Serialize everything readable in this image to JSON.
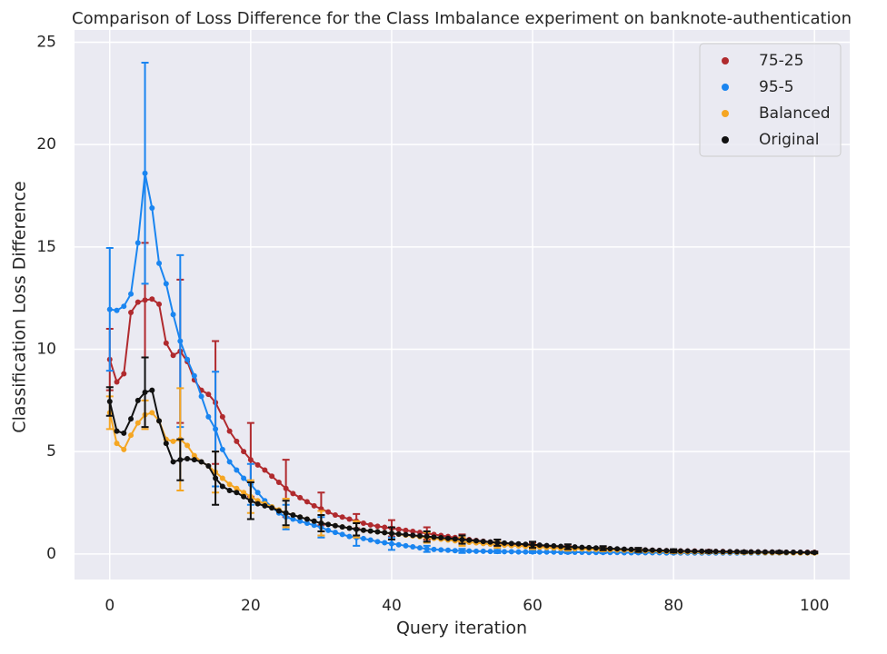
{
  "chart_data": {
    "type": "line",
    "title": "Comparison of Loss Difference for the Class Imbalance experiment on banknote-authentication",
    "xlabel": "Query iteration",
    "ylabel": "Classification Loss Difference",
    "x": [
      0,
      1,
      2,
      3,
      4,
      5,
      6,
      7,
      8,
      9,
      10,
      11,
      12,
      13,
      14,
      15,
      16,
      17,
      18,
      19,
      20,
      21,
      22,
      23,
      24,
      25,
      26,
      27,
      28,
      29,
      30,
      31,
      32,
      33,
      34,
      35,
      36,
      37,
      38,
      39,
      40,
      41,
      42,
      43,
      44,
      45,
      46,
      47,
      48,
      49,
      50,
      51,
      52,
      53,
      54,
      55,
      56,
      57,
      58,
      59,
      60,
      61,
      62,
      63,
      64,
      65,
      66,
      67,
      68,
      69,
      70,
      71,
      72,
      73,
      74,
      75,
      76,
      77,
      78,
      79,
      80,
      81,
      82,
      83,
      84,
      85,
      86,
      87,
      88,
      89,
      90,
      91,
      92,
      93,
      94,
      95,
      96,
      97,
      98,
      99,
      100
    ],
    "error_x": [
      0,
      5,
      10,
      15,
      20,
      25,
      30,
      35,
      40,
      45,
      50,
      55,
      60,
      65,
      70,
      75,
      80,
      85,
      90,
      95,
      100
    ],
    "xlim": [
      -5,
      105
    ],
    "xticks": [
      0,
      20,
      40,
      60,
      80,
      100
    ],
    "ylim": [
      -1.25,
      25.6
    ],
    "yticks": [
      0,
      5,
      10,
      15,
      20,
      25
    ],
    "grid": true,
    "legend": "upper right",
    "series": [
      {
        "name": "75-25",
        "color": "#b02a2e",
        "values": [
          9.5,
          8.4,
          8.8,
          11.8,
          12.3,
          12.4,
          12.45,
          12.2,
          10.3,
          9.7,
          9.9,
          9.4,
          8.5,
          8.0,
          7.8,
          7.4,
          6.7,
          6.0,
          5.5,
          5.0,
          4.6,
          4.35,
          4.1,
          3.8,
          3.5,
          3.2,
          2.95,
          2.75,
          2.55,
          2.35,
          2.2,
          2.05,
          1.9,
          1.8,
          1.7,
          1.6,
          1.5,
          1.42,
          1.35,
          1.3,
          1.25,
          1.2,
          1.15,
          1.1,
          1.05,
          1.0,
          0.95,
          0.9,
          0.85,
          0.8,
          0.75,
          0.7,
          0.66,
          0.62,
          0.58,
          0.55,
          0.52,
          0.49,
          0.46,
          0.43,
          0.4,
          0.38,
          0.36,
          0.34,
          0.32,
          0.3,
          0.29,
          0.28,
          0.27,
          0.26,
          0.25,
          0.24,
          0.23,
          0.22,
          0.21,
          0.2,
          0.19,
          0.18,
          0.17,
          0.16,
          0.15,
          0.15,
          0.14,
          0.14,
          0.13,
          0.13,
          0.12,
          0.12,
          0.11,
          0.11,
          0.1,
          0.1,
          0.1,
          0.09,
          0.09,
          0.09,
          0.08,
          0.08,
          0.08,
          0.08,
          0.08
        ],
        "errors": [
          1.5,
          2.8,
          3.5,
          3.0,
          1.8,
          1.4,
          0.8,
          0.35,
          0.4,
          0.3,
          0.2,
          0.15,
          0.15,
          0.1,
          0.1,
          0.08,
          0.06,
          0.05,
          0.05,
          0.04,
          0.04
        ]
      },
      {
        "name": "95-5",
        "color": "#1a85f0",
        "values": [
          11.95,
          11.9,
          12.1,
          12.7,
          15.2,
          18.6,
          16.9,
          14.2,
          13.2,
          11.7,
          10.4,
          9.5,
          8.7,
          7.7,
          6.7,
          6.1,
          5.1,
          4.5,
          4.1,
          3.7,
          3.4,
          3.0,
          2.6,
          2.3,
          2.0,
          1.8,
          1.7,
          1.6,
          1.5,
          1.4,
          1.3,
          1.15,
          1.05,
          0.95,
          0.85,
          0.8,
          0.75,
          0.68,
          0.6,
          0.55,
          0.5,
          0.45,
          0.4,
          0.35,
          0.3,
          0.25,
          0.22,
          0.2,
          0.18,
          0.16,
          0.15,
          0.14,
          0.13,
          0.13,
          0.12,
          0.12,
          0.11,
          0.11,
          0.1,
          0.1,
          0.1,
          0.09,
          0.09,
          0.09,
          0.08,
          0.08,
          0.08,
          0.08,
          0.07,
          0.07,
          0.07,
          0.07,
          0.07,
          0.06,
          0.06,
          0.06,
          0.06,
          0.06,
          0.06,
          0.05,
          0.05,
          0.05,
          0.05,
          0.05,
          0.05,
          0.05,
          0.05,
          0.05,
          0.05,
          0.05,
          0.05,
          0.05,
          0.05,
          0.05,
          0.05,
          0.05,
          0.05,
          0.05,
          0.05,
          0.05,
          0.05
        ],
        "errors": [
          3.0,
          5.4,
          4.2,
          2.8,
          1.0,
          0.6,
          0.5,
          0.4,
          0.3,
          0.15,
          0.1,
          0.08,
          0.06,
          0.05,
          0.04,
          0.03,
          0.03,
          0.02,
          0.02,
          0.02,
          0.02
        ]
      },
      {
        "name": "Balanced",
        "color": "#f5a623",
        "values": [
          6.9,
          5.4,
          5.1,
          5.8,
          6.4,
          6.8,
          6.9,
          6.5,
          5.6,
          5.5,
          5.6,
          5.3,
          4.8,
          4.5,
          4.3,
          4.0,
          3.7,
          3.4,
          3.2,
          3.0,
          2.8,
          2.6,
          2.45,
          2.3,
          2.15,
          2.0,
          1.9,
          1.8,
          1.7,
          1.6,
          1.5,
          1.44,
          1.38,
          1.32,
          1.26,
          1.2,
          1.16,
          1.12,
          1.08,
          1.04,
          1.0,
          0.96,
          0.92,
          0.88,
          0.84,
          0.8,
          0.76,
          0.72,
          0.68,
          0.64,
          0.6,
          0.57,
          0.54,
          0.51,
          0.48,
          0.45,
          0.43,
          0.41,
          0.39,
          0.37,
          0.35,
          0.33,
          0.31,
          0.29,
          0.27,
          0.26,
          0.25,
          0.24,
          0.23,
          0.22,
          0.21,
          0.2,
          0.19,
          0.18,
          0.17,
          0.16,
          0.15,
          0.14,
          0.13,
          0.12,
          0.11,
          0.1,
          0.1,
          0.1,
          0.09,
          0.09,
          0.09,
          0.08,
          0.08,
          0.08,
          0.07,
          0.07,
          0.07,
          0.06,
          0.06,
          0.06,
          0.06,
          0.05,
          0.05,
          0.05,
          0.05
        ],
        "errors": [
          0.8,
          0.7,
          2.5,
          1.0,
          0.8,
          0.7,
          0.6,
          0.4,
          0.3,
          0.25,
          0.2,
          0.15,
          0.12,
          0.1,
          0.08,
          0.07,
          0.06,
          0.05,
          0.05,
          0.04,
          0.04
        ]
      },
      {
        "name": "Original",
        "color": "#111111",
        "values": [
          7.45,
          6.0,
          5.9,
          6.6,
          7.5,
          7.9,
          8.0,
          6.5,
          5.4,
          4.5,
          4.6,
          4.65,
          4.6,
          4.5,
          4.3,
          3.7,
          3.3,
          3.1,
          3.0,
          2.8,
          2.6,
          2.45,
          2.35,
          2.25,
          2.1,
          2.0,
          1.9,
          1.8,
          1.7,
          1.6,
          1.5,
          1.44,
          1.38,
          1.32,
          1.26,
          1.2,
          1.16,
          1.12,
          1.08,
          1.04,
          1.0,
          0.97,
          0.94,
          0.91,
          0.88,
          0.85,
          0.82,
          0.79,
          0.76,
          0.73,
          0.7,
          0.67,
          0.64,
          0.61,
          0.58,
          0.55,
          0.53,
          0.51,
          0.49,
          0.47,
          0.45,
          0.43,
          0.41,
          0.39,
          0.37,
          0.35,
          0.34,
          0.32,
          0.31,
          0.29,
          0.28,
          0.26,
          0.25,
          0.23,
          0.22,
          0.2,
          0.19,
          0.18,
          0.17,
          0.16,
          0.15,
          0.14,
          0.14,
          0.13,
          0.13,
          0.12,
          0.12,
          0.11,
          0.11,
          0.11,
          0.1,
          0.1,
          0.1,
          0.09,
          0.09,
          0.09,
          0.08,
          0.08,
          0.08,
          0.07,
          0.07
        ],
        "errors": [
          0.7,
          1.7,
          1.0,
          1.3,
          0.9,
          0.6,
          0.4,
          0.3,
          0.3,
          0.25,
          0.2,
          0.15,
          0.15,
          0.12,
          0.1,
          0.1,
          0.08,
          0.06,
          0.05,
          0.05,
          0.04
        ]
      }
    ]
  }
}
